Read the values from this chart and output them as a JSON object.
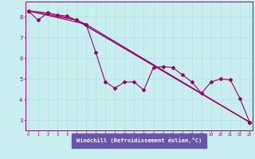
{
  "bg_color": "#c8eef0",
  "line_color": "#990066",
  "grid_color": "#aadddd",
  "line_width": 0.8,
  "marker": "D",
  "marker_size": 2.0,
  "xlabel": "Windchill (Refroidissement éolien,°C)",
  "xlabel_bg": "#6655aa",
  "xlim": [
    -0.3,
    23.3
  ],
  "ylim": [
    2.5,
    8.75
  ],
  "xticks": [
    0,
    1,
    2,
    3,
    4,
    5,
    6,
    7,
    8,
    9,
    10,
    11,
    12,
    13,
    14,
    15,
    16,
    17,
    18,
    19,
    20,
    21,
    22,
    23
  ],
  "yticks": [
    3,
    4,
    5,
    6,
    7,
    8
  ],
  "series_main": {
    "x": [
      0,
      1,
      2,
      3,
      4,
      5,
      6,
      7,
      8,
      9,
      10,
      11,
      12,
      13,
      14,
      15,
      16,
      17,
      18,
      19,
      20,
      21,
      22,
      23
    ],
    "y": [
      8.3,
      7.85,
      8.2,
      8.1,
      8.05,
      7.85,
      7.65,
      6.3,
      4.85,
      4.55,
      4.85,
      4.85,
      4.45,
      5.55,
      5.6,
      5.55,
      5.2,
      4.85,
      4.3,
      4.85,
      5.0,
      4.95,
      4.05,
      2.9
    ]
  },
  "series_smooth": [
    {
      "x": [
        0,
        2,
        5,
        23
      ],
      "y": [
        8.3,
        8.2,
        7.85,
        2.9
      ]
    },
    {
      "x": [
        0,
        5,
        23
      ],
      "y": [
        8.3,
        7.85,
        2.9
      ]
    },
    {
      "x": [
        0,
        6,
        23
      ],
      "y": [
        8.3,
        7.65,
        2.9
      ]
    }
  ]
}
